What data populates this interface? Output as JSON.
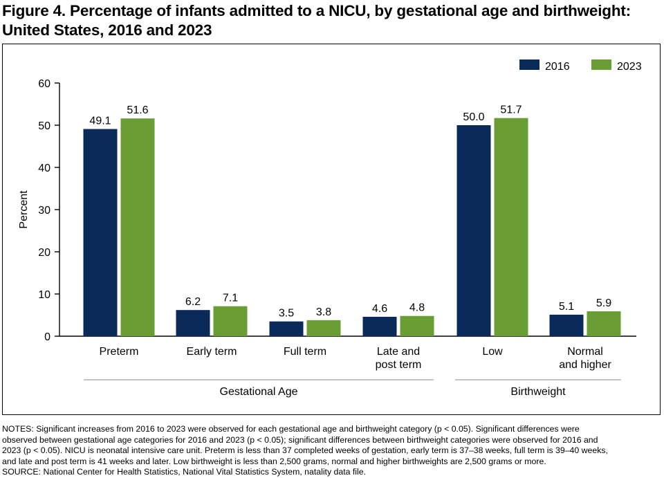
{
  "figure": {
    "title": "Figure 4. Percentage of infants admitted to a NICU, by gestational age and birthweight: United States, 2016 and 2023"
  },
  "chart_data": {
    "type": "bar",
    "ylabel": "Percent",
    "ylim": [
      0,
      60
    ],
    "yticks": [
      0,
      10,
      20,
      30,
      40,
      50,
      60
    ],
    "grid": false,
    "legend_position": "top-right",
    "categories": [
      {
        "label_lines": [
          "Preterm"
        ],
        "group": "Gestational Age"
      },
      {
        "label_lines": [
          "Early term"
        ],
        "group": "Gestational Age"
      },
      {
        "label_lines": [
          "Full term"
        ],
        "group": "Gestational Age"
      },
      {
        "label_lines": [
          "Late and",
          "post term"
        ],
        "group": "Gestational Age"
      },
      {
        "label_lines": [
          "Low"
        ],
        "group": "Birthweight"
      },
      {
        "label_lines": [
          "Normal",
          "and higher"
        ],
        "group": "Birthweight"
      }
    ],
    "groups": [
      "Gestational Age",
      "Birthweight"
    ],
    "series": [
      {
        "name": "2016",
        "color": "#0a2a5a",
        "values": [
          49.1,
          6.2,
          3.5,
          4.6,
          50.0,
          5.1
        ],
        "labels": [
          "49.1",
          "6.2",
          "3.5",
          "4.6",
          "50.0",
          "5.1"
        ]
      },
      {
        "name": "2023",
        "color": "#6a9e34",
        "values": [
          51.6,
          7.1,
          3.8,
          4.8,
          51.7,
          5.9
        ],
        "labels": [
          "51.6",
          "7.1",
          "3.8",
          "4.8",
          "51.7",
          "5.9"
        ]
      }
    ]
  },
  "notes": {
    "lines": [
      "NOTES: Significant increases from 2016 to 2023 were observed for each gestational age and birthweight category (p < 0.05). Significant differences were",
      "observed between gestational age categories for 2016 and 2023 (p < 0.05); significant differences between birthweight categories were observed for 2016 and",
      "2023 (p < 0.05). NICU is neonatal intensive care unit. Preterm is less than 37 completed weeks of gestation, early term is 37–38 weeks, full term is 39–40 weeks,",
      "and late and post term is 41 weeks and later. Low birthweight is less than 2,500 grams, normal and higher birthweights are 2,500 grams or more."
    ],
    "source": "SOURCE: National Center for Health Statistics, National Vital Statistics System, natality data file."
  }
}
